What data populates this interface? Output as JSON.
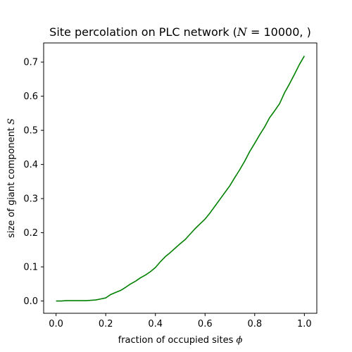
{
  "chart_data": {
    "type": "line",
    "title": {
      "prefix": "Site percolation on PLC network (",
      "var": "N",
      "eq": " = 10000, )"
    },
    "xlabel": {
      "text": "fraction of occupied sites ",
      "symbol": "ϕ"
    },
    "ylabel": {
      "text": "size of giant component ",
      "symbol": "S"
    },
    "xlim": [
      -0.05,
      1.05
    ],
    "ylim": [
      -0.036,
      0.756
    ],
    "xticks": [
      0.0,
      0.2,
      0.4,
      0.6,
      0.8,
      1.0
    ],
    "xtick_labels": [
      "0.0",
      "0.2",
      "0.4",
      "0.6",
      "0.8",
      "1.0"
    ],
    "yticks": [
      0.0,
      0.1,
      0.2,
      0.3,
      0.4,
      0.5,
      0.6,
      0.7
    ],
    "ytick_labels": [
      "0.0",
      "0.1",
      "0.2",
      "0.3",
      "0.4",
      "0.5",
      "0.6",
      "0.7"
    ],
    "grid": false,
    "color": "#008000",
    "series": [
      {
        "x": [
          0.0,
          0.02,
          0.04,
          0.06,
          0.08,
          0.1,
          0.12,
          0.14,
          0.16,
          0.18,
          0.2,
          0.21,
          0.22,
          0.24,
          0.26,
          0.28,
          0.3,
          0.32,
          0.34,
          0.36,
          0.38,
          0.4,
          0.42,
          0.44,
          0.46,
          0.48,
          0.5,
          0.52,
          0.54,
          0.56,
          0.58,
          0.6,
          0.62,
          0.64,
          0.66,
          0.68,
          0.7,
          0.72,
          0.74,
          0.76,
          0.78,
          0.8,
          0.82,
          0.84,
          0.86,
          0.88,
          0.9,
          0.92,
          0.94,
          0.96,
          0.98,
          1.0
        ],
        "y": [
          0.0,
          0.0,
          0.001,
          0.001,
          0.001,
          0.001,
          0.001,
          0.002,
          0.003,
          0.006,
          0.009,
          0.014,
          0.019,
          0.025,
          0.031,
          0.04,
          0.05,
          0.058,
          0.068,
          0.076,
          0.086,
          0.098,
          0.115,
          0.13,
          0.142,
          0.155,
          0.168,
          0.18,
          0.196,
          0.212,
          0.226,
          0.24,
          0.258,
          0.278,
          0.298,
          0.318,
          0.338,
          0.362,
          0.385,
          0.41,
          0.438,
          0.462,
          0.487,
          0.51,
          0.537,
          0.557,
          0.578,
          0.61,
          0.636,
          0.664,
          0.693,
          0.718
        ]
      }
    ]
  }
}
